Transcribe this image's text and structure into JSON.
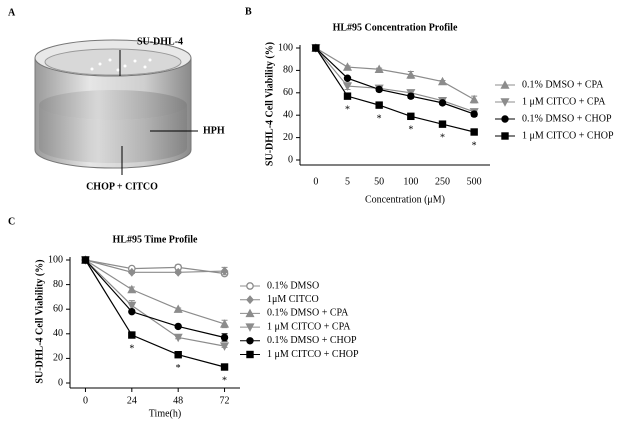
{
  "diagram": {
    "panel_label": "A",
    "labels": [
      "SU-DHL-4",
      "HPH",
      "CHOP + CITCO"
    ]
  },
  "chart_data": [
    {
      "type": "line",
      "panel_label": "B",
      "title": "HL#95 Concentration Profile",
      "x_label": "Concentration (μM)",
      "y_label": "SU-DHL-4 Cell Viability (%)",
      "categories": [
        "0",
        "5",
        "50",
        "100",
        "250",
        "500"
      ],
      "ylim": [
        0,
        100
      ],
      "yticks": [
        0,
        20,
        40,
        60,
        80,
        100
      ],
      "series": [
        {
          "name": "0.1% DMSO + CPA",
          "color": "#8c8c8c",
          "marker": "triangle",
          "values": [
            100,
            83,
            81,
            76,
            70,
            54
          ],
          "errors": [
            0,
            1,
            1,
            3,
            1,
            3
          ]
        },
        {
          "name": "1 μM  CITCO + CPA",
          "color": "#8c8c8c",
          "marker": "triangle-down",
          "values": [
            100,
            66,
            64,
            60,
            53,
            43
          ],
          "errors": [
            0,
            3,
            2,
            2,
            1,
            2
          ]
        },
        {
          "name": "0.1% DMSO + CHOP",
          "color": "#000000",
          "marker": "circle",
          "values": [
            100,
            73,
            63,
            57,
            51,
            41
          ],
          "errors": [
            0,
            1,
            2,
            2,
            1,
            2
          ]
        },
        {
          "name": "1 μM  CITCO + CHOP",
          "color": "#000000",
          "marker": "square",
          "values": [
            100,
            57,
            49,
            39,
            32,
            25
          ],
          "errors": [
            0,
            2,
            1,
            1,
            1,
            1
          ]
        }
      ],
      "significance": [
        null,
        "*",
        "*",
        "*",
        "*",
        "*"
      ]
    },
    {
      "type": "line",
      "panel_label": "C",
      "title": "HL#95 Time Profile",
      "x_label": "Time(h)",
      "y_label": "SU-DHL-4 Cell Viability (%)",
      "x": [
        0,
        24,
        48,
        72
      ],
      "xlim": [
        -8,
        80
      ],
      "xticks": [
        0,
        24,
        48,
        72
      ],
      "ylim": [
        0,
        100
      ],
      "yticks": [
        0,
        20,
        40,
        60,
        80,
        100
      ],
      "series": [
        {
          "name": "0.1% DMSO",
          "color": "#8c8c8c",
          "marker": "circle-open",
          "values": [
            100,
            93,
            94,
            89
          ],
          "errors": [
            0,
            1,
            2,
            1
          ]
        },
        {
          "name": "1μM CITCO",
          "color": "#8c8c8c",
          "marker": "diamond",
          "values": [
            100,
            90,
            90,
            91
          ],
          "errors": [
            0,
            1,
            1,
            3
          ]
        },
        {
          "name": "0.1% DMSO + CPA",
          "color": "#8c8c8c",
          "marker": "triangle",
          "values": [
            100,
            76,
            60,
            48
          ],
          "errors": [
            0,
            2,
            1,
            3
          ]
        },
        {
          "name": "1 μM  CITCO + CPA",
          "color": "#8c8c8c",
          "marker": "triangle-down",
          "values": [
            100,
            63,
            37,
            30
          ],
          "errors": [
            0,
            4,
            1,
            1
          ]
        },
        {
          "name": "0.1% DMSO + CHOP",
          "color": "#000000",
          "marker": "circle",
          "values": [
            100,
            58,
            46,
            37
          ],
          "errors": [
            0,
            1,
            1,
            3
          ]
        },
        {
          "name": "1 μM  CITCO + CHOP",
          "color": "#000000",
          "marker": "square",
          "values": [
            100,
            39,
            23,
            13
          ],
          "errors": [
            0,
            1,
            1,
            1
          ]
        }
      ],
      "significance": [
        null,
        "*",
        "*",
        "*"
      ]
    }
  ]
}
